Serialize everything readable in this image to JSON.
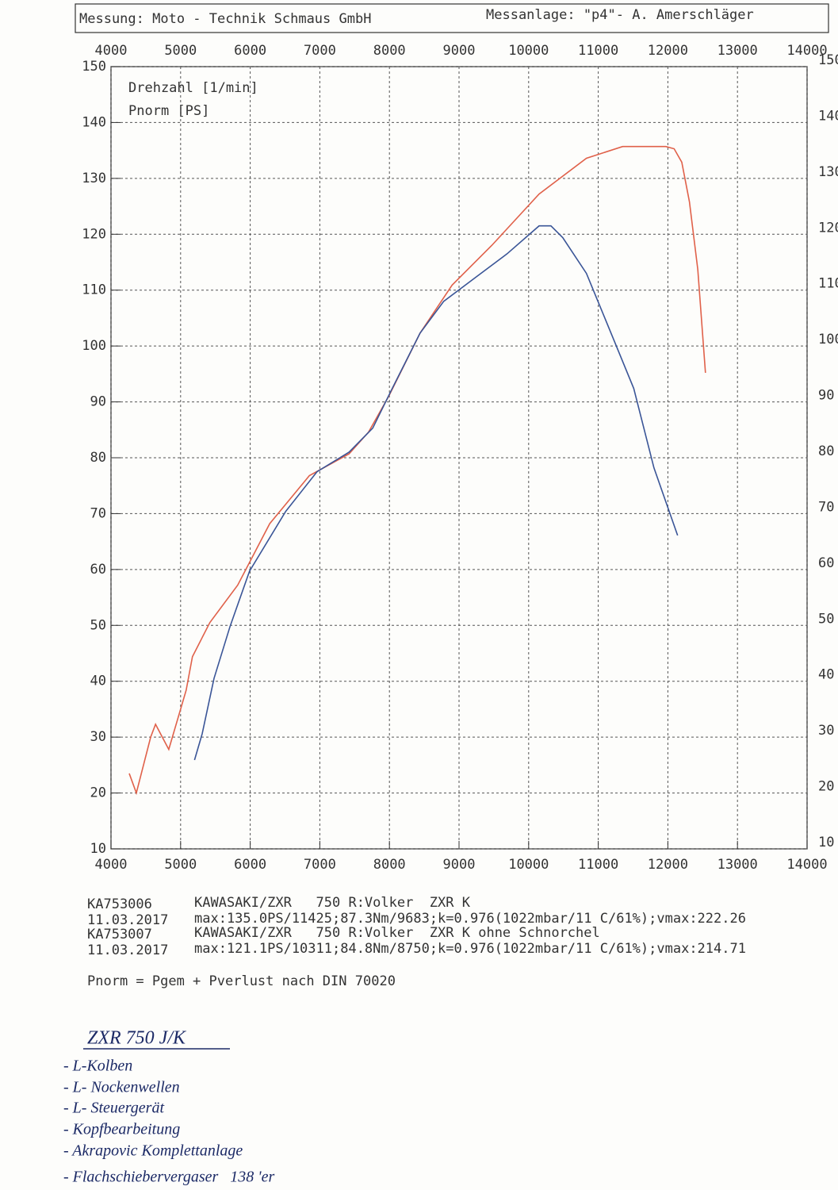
{
  "header": {
    "left": "Messung: Moto - Technik Schmaus GmbH",
    "right": "Messanlage: \"p4\"- A. Amerschläger"
  },
  "chart_data": {
    "type": "line",
    "axis_labels": [
      "Drehzahl [1/min]",
      "Pnorm [PS]"
    ],
    "xlim": [
      4000,
      14000
    ],
    "ylim": [
      10,
      150
    ],
    "xticks": [
      4000,
      5000,
      6000,
      7000,
      8000,
      9000,
      10000,
      11000,
      12000,
      13000,
      14000
    ],
    "yticks": [
      10,
      20,
      30,
      40,
      50,
      60,
      70,
      80,
      90,
      100,
      110,
      120,
      130,
      140,
      150
    ],
    "grid": true,
    "series": [
      {
        "name": "KA753006",
        "color": "#e0614a",
        "date": "11.03.2017",
        "description": "KAWASAKI/ZXR   750 R:Volker  ZXR K",
        "summary": "max:135.0PS/11425;87.3Nm/9683;k=0.976(1022mbar/11 C/61%);vmax:222.26",
        "x": [
          4262,
          4364,
          4570,
          4640,
          4830,
          5080,
          5170,
          5420,
          5820,
          6280,
          6850,
          7420,
          7700,
          7990,
          8440,
          8900,
          9470,
          10150,
          10830,
          11350,
          11970,
          12090,
          12200,
          12310,
          12430,
          12540
        ],
        "values": [
          23.5,
          20,
          30,
          32.3,
          27.8,
          38.4,
          44.4,
          50.5,
          57.2,
          68.2,
          76.8,
          80.7,
          84.6,
          91,
          102.3,
          110.9,
          118,
          127.2,
          133.6,
          135.7,
          135.7,
          135.3,
          132.9,
          125.8,
          113.7,
          95.2
        ]
      },
      {
        "name": "KA753007",
        "color": "#3a5597",
        "date": "11.03.2017",
        "description": "KAWASAKI/ZXR   750 R:Volker  ZXR K ohne Schnorchel",
        "summary": "max:121.1PS/10311;84.8Nm/8750;k=0.976(1022mbar/11 C/61%);vmax:214.71",
        "x": [
          5200,
          5310,
          5480,
          5710,
          5990,
          6510,
          6960,
          7420,
          7760,
          8040,
          8440,
          8780,
          9240,
          9690,
          10150,
          10320,
          10490,
          10830,
          11230,
          11510,
          11800,
          12140
        ],
        "values": [
          25.9,
          30.6,
          40.5,
          49.8,
          59.7,
          70.4,
          77.5,
          81,
          85.3,
          92.4,
          102.3,
          108,
          112.3,
          116.5,
          121.5,
          121.5,
          119.4,
          113,
          100.9,
          92.4,
          78.2,
          66.1
        ]
      }
    ]
  },
  "footnote": "Pnorm = Pgem + Pverlust nach DIN 70020",
  "notes": {
    "title": "ZXR 750 J/K",
    "items": [
      "- L-Kolben",
      "- L- Nockenwellen",
      "- L- Steuergerät",
      "- Kopfbearbeitung",
      "- Akrapovic Komplettanlage",
      "- Flachschiebervergaser   138 'er"
    ]
  }
}
